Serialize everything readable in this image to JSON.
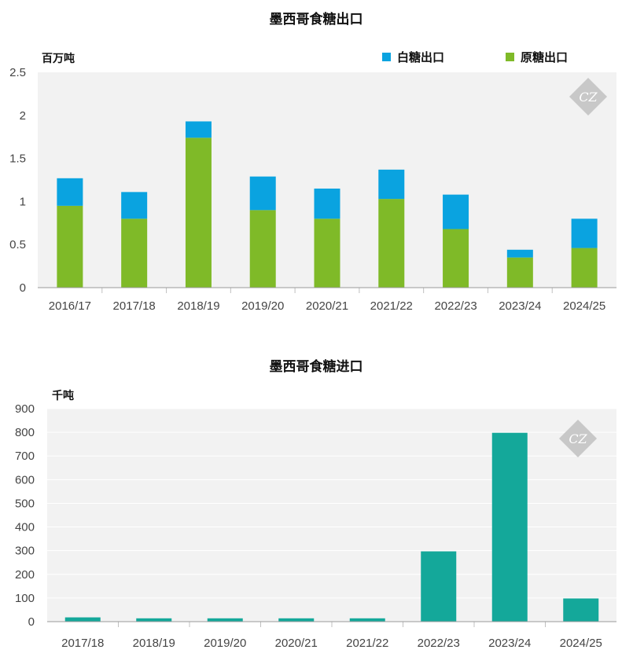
{
  "chart_data": [
    {
      "type": "bar",
      "stacked": true,
      "title": "墨西哥食糖出口",
      "unit": "百万吨",
      "categories": [
        "2016/17",
        "2017/18",
        "2018/19",
        "2019/20",
        "2020/21",
        "2021/22",
        "2022/23",
        "2023/24",
        "2024/25"
      ],
      "series": [
        {
          "name": "原糖出口",
          "color": "#7fba28",
          "values": [
            0.95,
            0.8,
            1.74,
            0.9,
            0.8,
            1.03,
            0.68,
            0.35,
            0.46
          ]
        },
        {
          "name": "白糖出口",
          "color": "#0aa3e0",
          "values": [
            0.32,
            0.31,
            0.19,
            0.39,
            0.35,
            0.34,
            0.4,
            0.09,
            0.34
          ]
        }
      ],
      "ylim": [
        0,
        2.5
      ],
      "yticks": [
        "0",
        "0.5",
        "1",
        "1.5",
        "2",
        "2.5"
      ],
      "legend": [
        "白糖出口",
        "原糖出口"
      ],
      "legend_position": "top-right",
      "grid": false
    },
    {
      "type": "bar",
      "stacked": false,
      "title": "墨西哥食糖进口",
      "unit": "千吨",
      "categories": [
        "2017/18",
        "2018/19",
        "2019/20",
        "2020/21",
        "2021/22",
        "2022/23",
        "2023/24",
        "2024/25"
      ],
      "series": [
        {
          "color": "#14a89a",
          "values": [
            18,
            14,
            14,
            14,
            14,
            297,
            798,
            98
          ]
        }
      ],
      "ylim": [
        0,
        900
      ],
      "yticks": [
        "0",
        "100",
        "200",
        "300",
        "400",
        "500",
        "600",
        "700",
        "800",
        "900"
      ],
      "grid": true
    }
  ],
  "watermark": {
    "text": "CZ",
    "icon": "cz-logo-icon"
  },
  "colors": {
    "plot_bg": "#f2f2f2",
    "grid": "#ffffff",
    "axis": "#9a9a9a",
    "watermark": "#c8c8c8"
  }
}
